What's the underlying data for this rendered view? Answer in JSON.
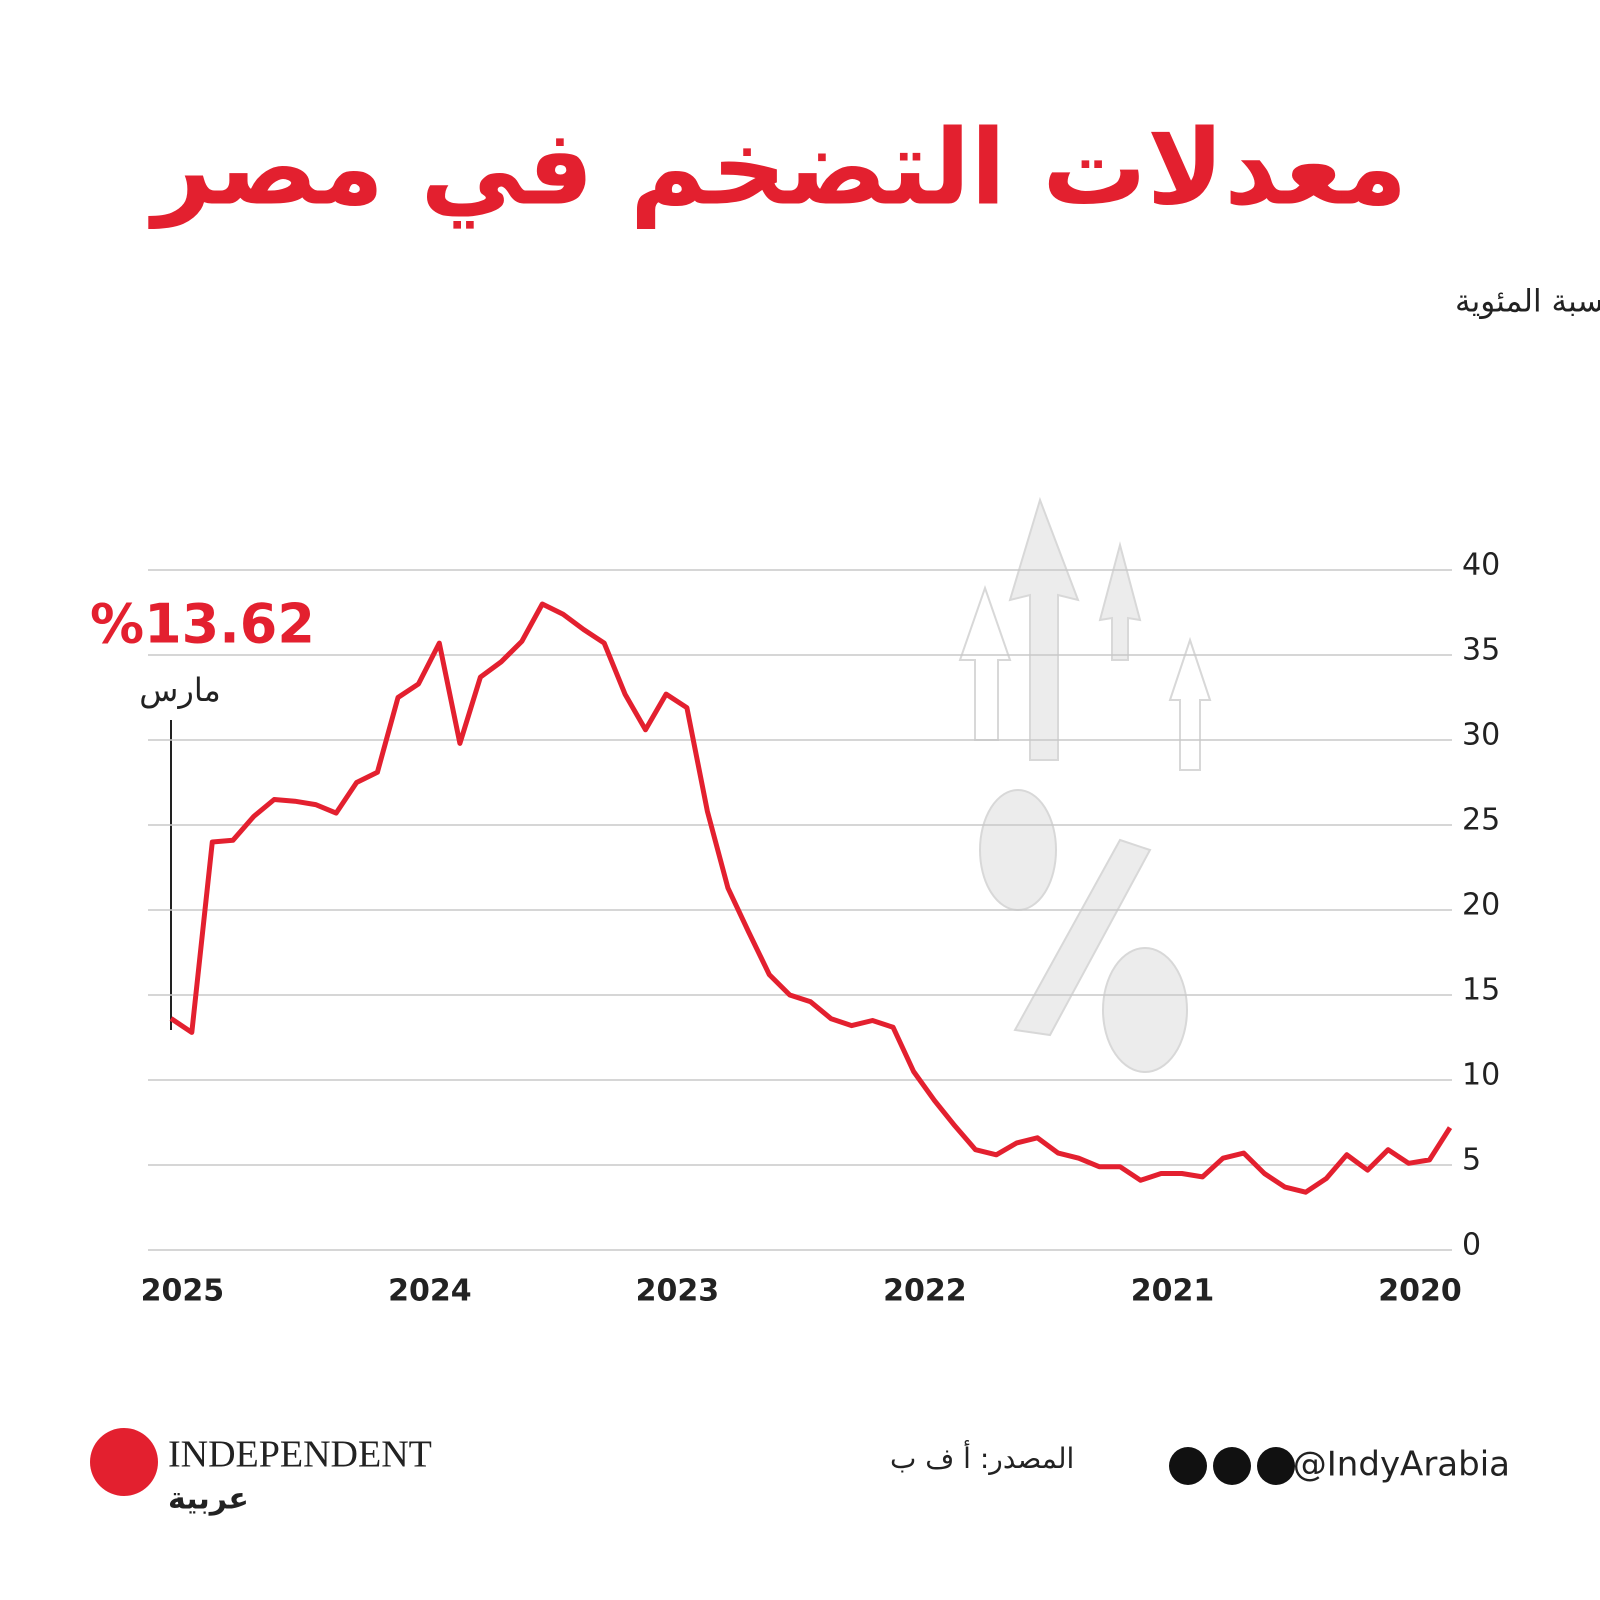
{
  "chart_data": {
    "type": "line",
    "title": "معدلات التضخم في مصر",
    "subtitle": "الرقم العام لأسعار المستهلكين، التغير الشهري على أساس سنوي، بالنسبة المئوية",
    "x": [
      2020,
      2020.083,
      2020.167,
      2020.25,
      2020.333,
      2020.417,
      2020.5,
      2020.583,
      2020.667,
      2020.75,
      2020.833,
      2020.917,
      2021,
      2021.083,
      2021.167,
      2021.25,
      2021.333,
      2021.417,
      2021.5,
      2021.583,
      2021.667,
      2021.75,
      2021.833,
      2021.917,
      2022,
      2022.083,
      2022.167,
      2022.25,
      2022.333,
      2022.417,
      2022.5,
      2022.583,
      2022.667,
      2022.75,
      2022.833,
      2022.917,
      2023,
      2023.083,
      2023.167,
      2023.25,
      2023.333,
      2023.417,
      2023.5,
      2023.583,
      2023.667,
      2023.75,
      2023.833,
      2023.917,
      2024,
      2024.083,
      2024.167,
      2024.25,
      2024.333,
      2024.417,
      2024.5,
      2024.583,
      2024.667,
      2024.75,
      2024.833,
      2024.917,
      2025,
      2025.083,
      2025.167
    ],
    "values": [
      7.2,
      5.3,
      5.1,
      5.9,
      4.7,
      5.6,
      4.2,
      3.4,
      3.7,
      4.5,
      5.7,
      5.4,
      4.3,
      4.5,
      4.5,
      4.1,
      4.9,
      4.9,
      5.4,
      5.7,
      6.6,
      6.3,
      5.6,
      5.9,
      7.3,
      8.8,
      10.5,
      13.1,
      13.5,
      13.2,
      13.6,
      14.6,
      15.0,
      16.2,
      18.7,
      21.3,
      25.8,
      31.9,
      32.7,
      30.6,
      32.7,
      35.7,
      36.5,
      37.4,
      38.0,
      35.8,
      34.6,
      33.7,
      29.8,
      35.7,
      33.3,
      32.5,
      28.1,
      27.5,
      25.7,
      26.2,
      26.4,
      26.5,
      25.5,
      24.1,
      24.0,
      12.8,
      13.62
    ],
    "color": "#e3202f",
    "xlim": [
      2020,
      2025.167
    ],
    "xticks": [
      2020,
      2021,
      2022,
      2023,
      2024,
      2025
    ],
    "ylim": [
      0,
      40
    ],
    "yticks": [
      0,
      5,
      10,
      15,
      20,
      25,
      30,
      35,
      40
    ],
    "grid": true,
    "annotation": {
      "label": "%13.62",
      "month": "مارس"
    }
  },
  "footer": {
    "brand": "INDEPENDENT",
    "brand_sub": "عربية",
    "source": "المصدر: أ ف ب",
    "handle": "@IndyArabia"
  }
}
